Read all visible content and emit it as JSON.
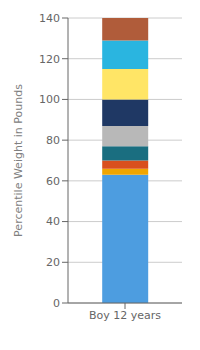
{
  "chart_data": {
    "type": "bar",
    "stacked": true,
    "categories": [
      "Boy 12 years"
    ],
    "series": [
      {
        "values": [
          63
        ],
        "color": "#4d9de0"
      },
      {
        "values": [
          3
        ],
        "color": "#f0a500"
      },
      {
        "values": [
          4
        ],
        "color": "#d94f1e"
      },
      {
        "values": [
          7
        ],
        "color": "#1a6e80"
      },
      {
        "values": [
          10
        ],
        "color": "#b8b8b8"
      },
      {
        "values": [
          13
        ],
        "color": "#1f3864"
      },
      {
        "values": [
          15
        ],
        "color": "#ffe566"
      },
      {
        "values": [
          14
        ],
        "color": "#2ab5e0"
      },
      {
        "values": [
          11
        ],
        "color": "#b05c3a"
      }
    ],
    "ylabel": "Percentile Weight in Pounds",
    "ylim": [
      0,
      140
    ],
    "yticks": [
      0,
      20,
      40,
      60,
      80,
      100,
      120,
      140
    ],
    "grid": true
  }
}
